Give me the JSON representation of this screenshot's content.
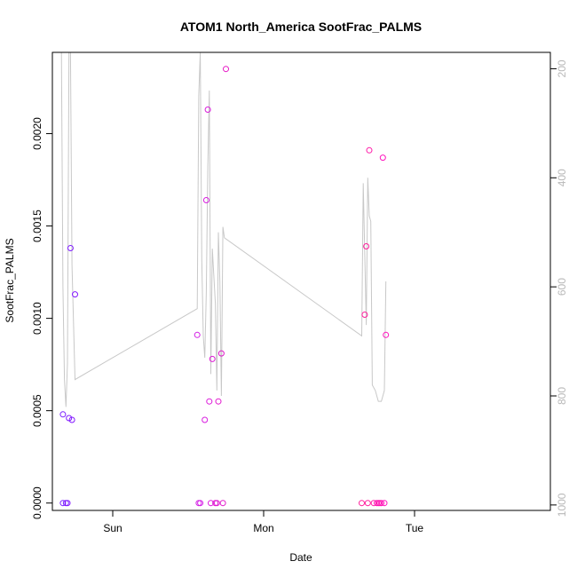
{
  "chart_data": {
    "type": "scatter",
    "title": "ATOM1 North_America SootFrac_PALMS",
    "xlabel": "Date",
    "ylabel": "SootFrac_PALMS",
    "xlim": [
      -0.4,
      2.9
    ],
    "ylim": [
      -4e-05,
      0.00244
    ],
    "x_ticks": [
      {
        "value": 0,
        "label": "Sun"
      },
      {
        "value": 1,
        "label": "Mon"
      },
      {
        "value": 2,
        "label": "Tue"
      }
    ],
    "y_ticks": [
      {
        "value": 0,
        "label": "0.0000"
      },
      {
        "value": 0.0005,
        "label": "0.0005"
      },
      {
        "value": 0.001,
        "label": "0.0010"
      },
      {
        "value": 0.0015,
        "label": "0.0015"
      },
      {
        "value": 0.002,
        "label": "0.0020"
      }
    ],
    "right_axis": {
      "ylim": [
        1010,
        170
      ],
      "reversed": true,
      "ticks": [
        {
          "value": 200,
          "label": "200"
        },
        {
          "value": 400,
          "label": "400"
        },
        {
          "value": 600,
          "label": "600"
        },
        {
          "value": 800,
          "label": "800"
        },
        {
          "value": 1000,
          "label": "1000"
        }
      ],
      "color": "#c8c8c8"
    },
    "series": [
      {
        "type": "scatter",
        "points": [
          {
            "x": -0.33,
            "y": 0.0,
            "color": "#7a1fff"
          },
          {
            "x": -0.31,
            "y": 0.0,
            "color": "#7a1fff"
          },
          {
            "x": -0.3,
            "y": 0.0,
            "color": "#8418ff"
          },
          {
            "x": -0.33,
            "y": 0.00048,
            "color": "#7a1fff"
          },
          {
            "x": -0.29,
            "y": 0.00046,
            "color": "#7f1cff"
          },
          {
            "x": -0.27,
            "y": 0.00045,
            "color": "#8418ff"
          },
          {
            "x": -0.28,
            "y": 0.00138,
            "color": "#7f1cff"
          },
          {
            "x": -0.25,
            "y": 0.00113,
            "color": "#8418ff"
          },
          {
            "x": 0.56,
            "y": 0.00091,
            "color": "#d41fe6"
          },
          {
            "x": 0.57,
            "y": 0.0,
            "color": "#d41fe6"
          },
          {
            "x": 0.58,
            "y": 0.0,
            "color": "#d41fe6"
          },
          {
            "x": 0.61,
            "y": 0.00045,
            "color": "#d81de0"
          },
          {
            "x": 0.62,
            "y": 0.00164,
            "color": "#d81de0"
          },
          {
            "x": 0.63,
            "y": 0.00213,
            "color": "#da1cdc"
          },
          {
            "x": 0.64,
            "y": 0.00055,
            "color": "#dc1bda"
          },
          {
            "x": 0.65,
            "y": 0.0,
            "color": "#dc1bda"
          },
          {
            "x": 0.66,
            "y": 0.00078,
            "color": "#de1ad6"
          },
          {
            "x": 0.68,
            "y": 0.0,
            "color": "#e019d2"
          },
          {
            "x": 0.69,
            "y": 0.0,
            "color": "#e019d2"
          },
          {
            "x": 0.7,
            "y": 0.00055,
            "color": "#e219ce"
          },
          {
            "x": 0.72,
            "y": 0.00081,
            "color": "#e218cc"
          },
          {
            "x": 0.73,
            "y": 0.0,
            "color": "#e218cc"
          },
          {
            "x": 0.75,
            "y": 0.00235,
            "color": "#e616c6"
          },
          {
            "x": 1.65,
            "y": 0.0,
            "color": "#ff1e9c"
          },
          {
            "x": 1.67,
            "y": 0.00102,
            "color": "#ff1e9c"
          },
          {
            "x": 1.68,
            "y": 0.00139,
            "color": "#ff1e9c"
          },
          {
            "x": 1.69,
            "y": 0.0,
            "color": "#ff1e9c"
          },
          {
            "x": 1.7,
            "y": 0.00191,
            "color": "#ff1aa8"
          },
          {
            "x": 1.73,
            "y": 0.0,
            "color": "#ff1aa8"
          },
          {
            "x": 1.75,
            "y": 0.0,
            "color": "#ff16b4"
          },
          {
            "x": 1.76,
            "y": 0.0,
            "color": "#ff16b4"
          },
          {
            "x": 1.77,
            "y": 0.0,
            "color": "#ff16b4"
          },
          {
            "x": 1.78,
            "y": 0.0,
            "color": "#ff16b4"
          },
          {
            "x": 1.79,
            "y": 0.00187,
            "color": "#ff14be"
          },
          {
            "x": 1.8,
            "y": 0.0,
            "color": "#ff14be"
          },
          {
            "x": 1.81,
            "y": 0.00091,
            "color": "#ff14be"
          }
        ]
      },
      {
        "type": "line",
        "axis": "right",
        "color": "#c8c8c8",
        "points": [
          {
            "x": -0.34,
            "y": 170
          },
          {
            "x": -0.33,
            "y": 600
          },
          {
            "x": -0.32,
            "y": 770
          },
          {
            "x": -0.31,
            "y": 820
          },
          {
            "x": -0.3,
            "y": 740
          },
          {
            "x": -0.29,
            "y": 170
          },
          {
            "x": -0.28,
            "y": 170
          },
          {
            "x": -0.27,
            "y": 560
          },
          {
            "x": -0.25,
            "y": 770
          },
          {
            "x": 0.56,
            "y": 640
          },
          {
            "x": 0.57,
            "y": 250
          },
          {
            "x": 0.58,
            "y": 170
          },
          {
            "x": 0.59,
            "y": 550
          },
          {
            "x": 0.6,
            "y": 690
          },
          {
            "x": 0.61,
            "y": 730
          },
          {
            "x": 0.62,
            "y": 610
          },
          {
            "x": 0.63,
            "y": 380
          },
          {
            "x": 0.64,
            "y": 240
          },
          {
            "x": 0.65,
            "y": 760
          },
          {
            "x": 0.66,
            "y": 530
          },
          {
            "x": 0.67,
            "y": 580
          },
          {
            "x": 0.68,
            "y": 630
          },
          {
            "x": 0.69,
            "y": 790
          },
          {
            "x": 0.7,
            "y": 500
          },
          {
            "x": 0.71,
            "y": 590
          },
          {
            "x": 0.72,
            "y": 800
          },
          {
            "x": 0.73,
            "y": 490
          },
          {
            "x": 0.74,
            "y": 510
          },
          {
            "x": 1.65,
            "y": 690
          },
          {
            "x": 1.66,
            "y": 410
          },
          {
            "x": 1.67,
            "y": 540
          },
          {
            "x": 1.68,
            "y": 670
          },
          {
            "x": 1.69,
            "y": 400
          },
          {
            "x": 1.7,
            "y": 470
          },
          {
            "x": 1.71,
            "y": 480
          },
          {
            "x": 1.72,
            "y": 780
          },
          {
            "x": 1.74,
            "y": 790
          },
          {
            "x": 1.76,
            "y": 810
          },
          {
            "x": 1.78,
            "y": 810
          },
          {
            "x": 1.8,
            "y": 790
          },
          {
            "x": 1.81,
            "y": 590
          }
        ]
      }
    ]
  }
}
